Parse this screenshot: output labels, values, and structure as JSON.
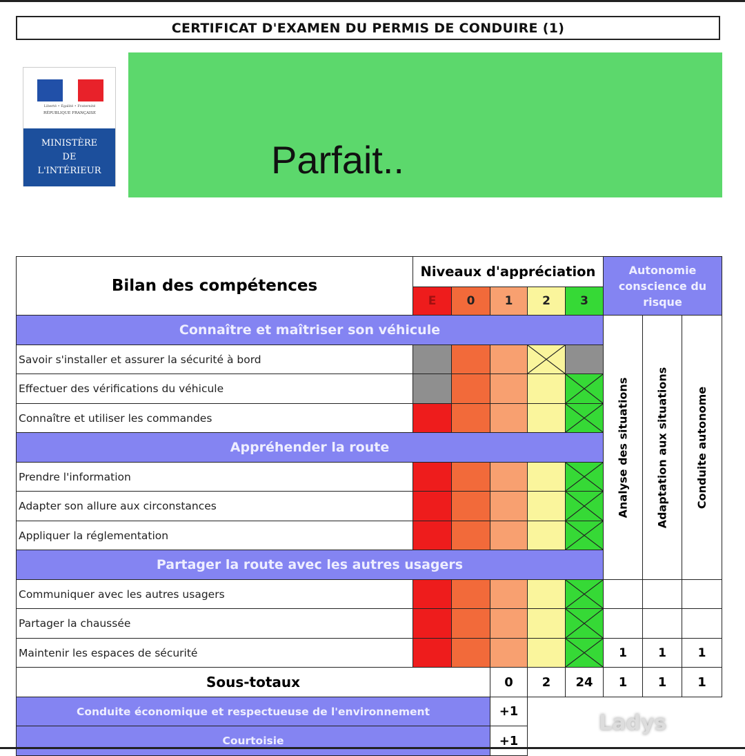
{
  "title": "CERTIFICAT D'EXAMEN DU PERMIS DE CONDUIRE (1)",
  "logo": {
    "motto": "Liberté • Égalité • Fraternité",
    "republic": "RÉPUBLIQUE FRANÇAISE",
    "ministry": [
      "MINISTÈRE",
      "DE",
      "L'INTÉRIEUR"
    ]
  },
  "result": "Parfait..",
  "table": {
    "heading": "Bilan des compétences",
    "levels_title": "Niveaux d'appréciation",
    "levels": [
      "E",
      "0",
      "1",
      "2",
      "3"
    ],
    "autonomy_title": "Autonomie conscience du risque",
    "autonomy_columns": [
      "Analyse des situations",
      "Adaptation aux situations",
      "Conduite autonome"
    ],
    "colors": {
      "red": "#ee1c1c",
      "orange": "#f26a3a",
      "lightorange": "#f8a070",
      "yellow": "#faf59c",
      "green": "#36d936",
      "gray": "#8f8f8f",
      "section": "#8484f2",
      "banner": "#5cd86c"
    },
    "sections": [
      {
        "title": "Connaître et maîtriser son véhicule",
        "rows": [
          {
            "label": "Savoir s'installer et assurer la sécurité à bord",
            "cells": [
              "gray",
              "orange",
              "lightorange",
              "yellow",
              "gray"
            ],
            "checked": 3
          },
          {
            "label": "Effectuer des vérifications du véhicule",
            "cells": [
              "gray",
              "orange",
              "lightorange",
              "yellow",
              "green"
            ],
            "checked": 4
          },
          {
            "label": "Connaître et utiliser les commandes",
            "cells": [
              "red",
              "orange",
              "lightorange",
              "yellow",
              "green"
            ],
            "checked": 4
          }
        ]
      },
      {
        "title": "Appréhender la route",
        "rows": [
          {
            "label": "Prendre l'information",
            "cells": [
              "red",
              "orange",
              "lightorange",
              "yellow",
              "green"
            ],
            "checked": 4
          },
          {
            "label": "Adapter son allure aux circonstances",
            "cells": [
              "red",
              "orange",
              "lightorange",
              "yellow",
              "green"
            ],
            "checked": 4
          },
          {
            "label": "Appliquer la réglementation",
            "cells": [
              "red",
              "orange",
              "lightorange",
              "yellow",
              "green"
            ],
            "checked": 4
          }
        ]
      },
      {
        "title": "Partager la route avec les autres usagers",
        "rows": [
          {
            "label": "Communiquer avec les autres usagers",
            "cells": [
              "red",
              "orange",
              "lightorange",
              "yellow",
              "green"
            ],
            "checked": 4,
            "autonomy": [
              "",
              "",
              ""
            ]
          },
          {
            "label": "Partager la chaussée",
            "cells": [
              "red",
              "orange",
              "lightorange",
              "yellow",
              "green"
            ],
            "checked": 4,
            "autonomy": [
              "",
              "",
              ""
            ]
          },
          {
            "label": "Maintenir les espaces de sécurité",
            "cells": [
              "red",
              "orange",
              "lightorange",
              "yellow",
              "green"
            ],
            "checked": 4,
            "autonomy": [
              "1",
              "1",
              "1"
            ]
          }
        ]
      }
    ],
    "subtotals": {
      "label": "Sous-totaux",
      "levels": [
        "0",
        "2",
        "24"
      ],
      "autonomy": [
        "1",
        "1",
        "1"
      ]
    },
    "bonuses": [
      {
        "label": "Conduite économique et respectueuse de l'environnement",
        "value": "+1"
      },
      {
        "label": "Courtoisie",
        "value": "+1"
      }
    ]
  },
  "watermark": "Ladys"
}
